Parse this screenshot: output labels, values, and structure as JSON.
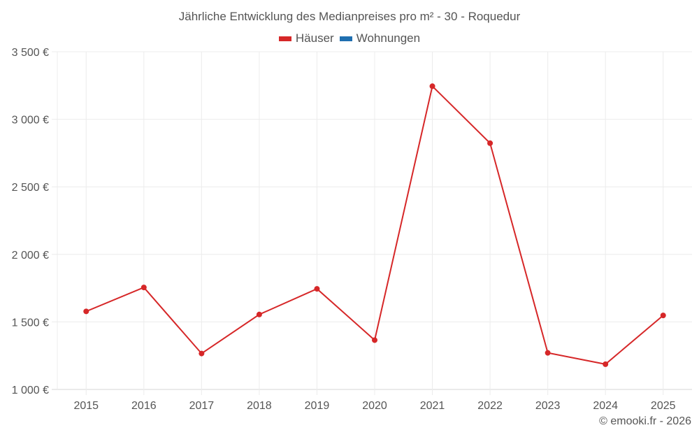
{
  "title": "Jährliche Entwicklung des Medianpreises pro m² - 30 - Roquedur",
  "legend": [
    {
      "label": "Häuser",
      "color": "#d62728"
    },
    {
      "label": "Wohnungen",
      "color": "#1f6fb0"
    }
  ],
  "credit": "© emooki.fr - 2026",
  "chart_data": {
    "type": "line",
    "title": "Jährliche Entwicklung des Medianpreises pro m² - 30 - Roquedur",
    "xlabel": "",
    "ylabel": "",
    "x": [
      "2015",
      "2016",
      "2017",
      "2018",
      "2019",
      "2020",
      "2021",
      "2022",
      "2023",
      "2024",
      "2025"
    ],
    "series": [
      {
        "name": "Häuser",
        "color": "#d62728",
        "values": [
          1578,
          1755,
          1266,
          1555,
          1745,
          1365,
          3245,
          2823,
          1271,
          1187,
          1548
        ]
      },
      {
        "name": "Wohnungen",
        "color": "#1f6fb0",
        "values": []
      }
    ],
    "ylim": [
      1000,
      3500
    ],
    "yticks": [
      1000,
      1500,
      2000,
      2500,
      3000,
      3500
    ],
    "ytick_labels": [
      "1 000 €",
      "1 500 €",
      "2 000 €",
      "2 500 €",
      "3 000 €",
      "3 500 €"
    ],
    "grid": true,
    "legend_position": "top"
  }
}
